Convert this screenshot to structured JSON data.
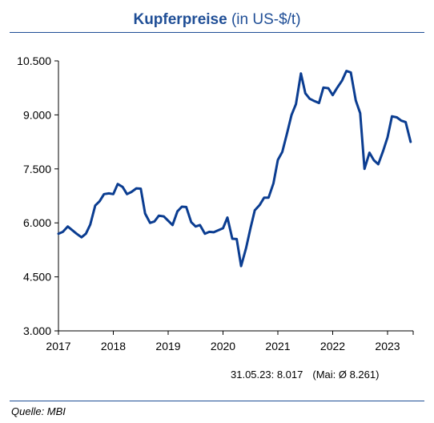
{
  "header": {
    "title_bold": "Kupferpreise",
    "title_rest": " (in US-$/t)"
  },
  "note": {
    "last_value": "31.05.23: 8.017",
    "monthly_avg": "(Mai: Ø 8.261)"
  },
  "source": "Quelle: MBI",
  "colors": {
    "line": "#0b3d91",
    "title": "#1f4e96"
  },
  "chart_data": {
    "type": "line",
    "title": "Kupferpreise (in US-$/t)",
    "xlabel": "",
    "ylabel": "",
    "ylim": [
      3000,
      10500
    ],
    "yticks": [
      3000,
      4500,
      6000,
      7500,
      9000,
      10500
    ],
    "ytick_labels": [
      "3.000",
      "4.500",
      "6.000",
      "7.500",
      "9.000",
      "10.500"
    ],
    "xlim": [
      2017.0,
      2023.42
    ],
    "xticks": [
      2017,
      2018,
      2019,
      2020,
      2021,
      2022,
      2023
    ],
    "xtick_labels": [
      "2017",
      "2018",
      "2019",
      "2020",
      "2021",
      "2022",
      "2023"
    ],
    "grid": false,
    "series": [
      {
        "values_x": [
          2017.0,
          2017.08,
          2017.17,
          2017.25,
          2017.33,
          2017.42,
          2017.5,
          2017.58,
          2017.67,
          2017.75,
          2017.83,
          2017.92,
          2018.0,
          2018.08,
          2018.17,
          2018.25,
          2018.33,
          2018.42,
          2018.5,
          2018.58,
          2018.67,
          2018.75,
          2018.83,
          2018.92,
          2019.0,
          2019.08,
          2019.17,
          2019.25,
          2019.33,
          2019.42,
          2019.5,
          2019.58,
          2019.67,
          2019.75,
          2019.83,
          2019.92,
          2020.0,
          2020.08,
          2020.17,
          2020.25,
          2020.33,
          2020.42,
          2020.5,
          2020.58,
          2020.67,
          2020.75,
          2020.83,
          2020.92,
          2021.0,
          2021.08,
          2021.17,
          2021.25,
          2021.33,
          2021.42,
          2021.5,
          2021.58,
          2021.67,
          2021.75,
          2021.83,
          2021.92,
          2022.0,
          2022.08,
          2022.17,
          2022.25,
          2022.33,
          2022.42,
          2022.5,
          2022.58,
          2022.67,
          2022.75,
          2022.83,
          2022.92,
          2023.0,
          2023.08,
          2023.17,
          2023.25,
          2023.33,
          2023.42
        ],
        "values": [
          5700,
          5750,
          5900,
          5800,
          5700,
          5600,
          5700,
          5950,
          6480,
          6600,
          6800,
          6820,
          6800,
          7080,
          7000,
          6800,
          6860,
          6960,
          6950,
          6260,
          6000,
          6040,
          6200,
          6180,
          6060,
          5940,
          6320,
          6450,
          6440,
          6020,
          5900,
          5940,
          5700,
          5750,
          5740,
          5800,
          5850,
          6150,
          5560,
          5550,
          4800,
          5300,
          5850,
          6350,
          6500,
          6700,
          6700,
          7100,
          7750,
          7970,
          8500,
          9000,
          9300,
          10150,
          9600,
          9450,
          9380,
          9330,
          9760,
          9740,
          9550,
          9750,
          9950,
          10220,
          10180,
          9400,
          9050,
          7500,
          7950,
          7740,
          7630,
          8000,
          8380,
          8960,
          8930,
          8840,
          8800,
          8250
        ]
      }
    ]
  }
}
